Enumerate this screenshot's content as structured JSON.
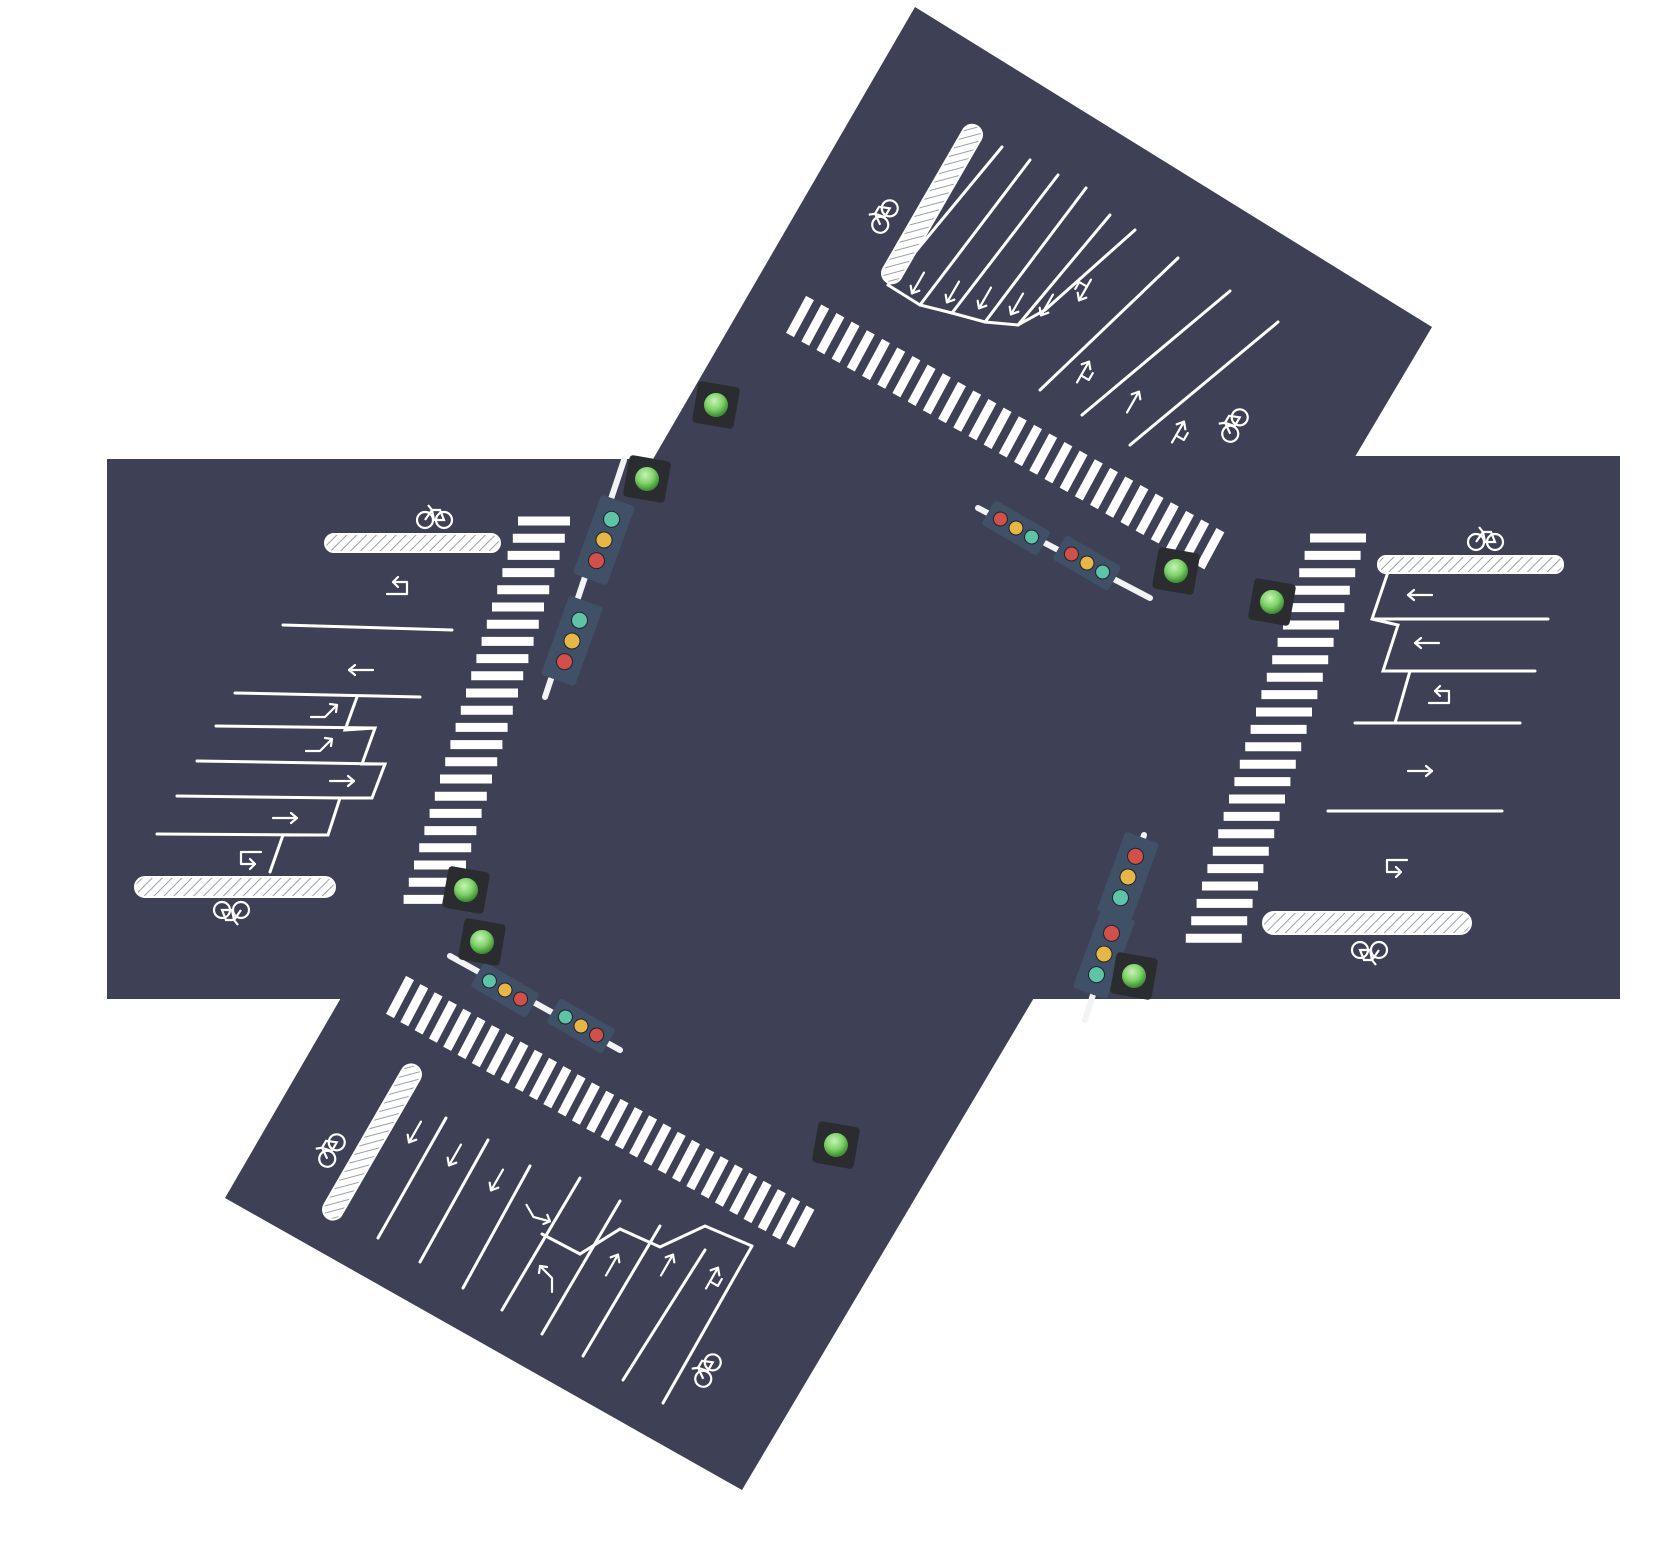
{
  "scene": {
    "name": "intersection-plan",
    "colors": {
      "background": "#ffffff",
      "asphalt": "#3e4156",
      "marking": "#ffffff",
      "signal_housing": "#405066",
      "lamp_red": "#d2504a",
      "lamp_yellow": "#e6b746",
      "lamp_green": "#5ec4a5",
      "pedestrian_button": "#7fd36a",
      "button_box": "#2a2c30"
    }
  },
  "approaches": {
    "north": {
      "exit_lanes": [
        "bike",
        "left-uturn",
        "left",
        "left",
        "left",
        "left",
        "straight-left"
      ],
      "entry_lanes": [
        "uturn",
        "straight",
        "straight-left",
        "bike"
      ]
    },
    "south": {
      "exit_lanes": [
        "bike",
        "left",
        "left",
        "left",
        "right-bend"
      ],
      "entry_lanes": [
        "straight-bend",
        "straight",
        "straight",
        "straight-right",
        "bike"
      ]
    },
    "west": {
      "entry_lanes": [
        "bike",
        "left-uturn",
        "left",
        "right-bend",
        "right-bend",
        "right",
        "right",
        "uturn",
        "bike"
      ]
    },
    "east": {
      "entry_lanes": [
        "bike",
        "left",
        "left",
        "uturn",
        "right",
        "uturn",
        "bike"
      ]
    }
  },
  "signals": [
    {
      "id": "nw-vertical-1",
      "lamps": [
        "green",
        "yellow",
        "red"
      ]
    },
    {
      "id": "nw-vertical-2",
      "lamps": [
        "green",
        "yellow",
        "red"
      ]
    },
    {
      "id": "ne-horizontal-1",
      "lamps": [
        "red",
        "yellow",
        "green"
      ]
    },
    {
      "id": "ne-horizontal-2",
      "lamps": [
        "red",
        "yellow",
        "green"
      ]
    },
    {
      "id": "se-vertical-1",
      "lamps": [
        "red",
        "yellow",
        "green"
      ]
    },
    {
      "id": "se-vertical-2",
      "lamps": [
        "red",
        "yellow",
        "green"
      ]
    },
    {
      "id": "sw-horizontal-1",
      "lamps": [
        "green",
        "yellow",
        "red"
      ]
    },
    {
      "id": "sw-horizontal-2",
      "lamps": [
        "green",
        "yellow",
        "red"
      ]
    }
  ],
  "pedestrian_buttons": 8
}
